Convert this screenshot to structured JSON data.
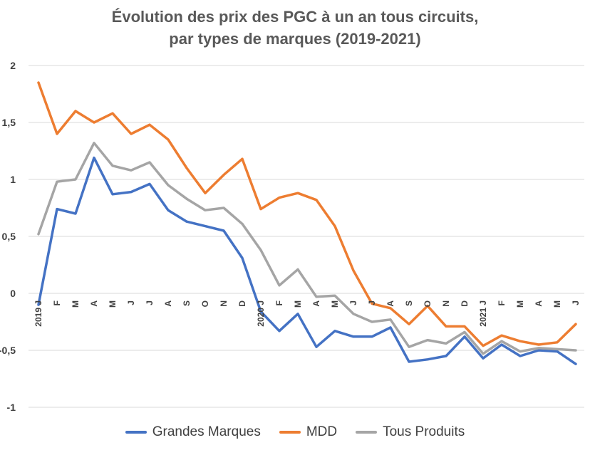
{
  "chart_data": {
    "type": "line",
    "title": [
      "Évolution des prix des PGC à un an tous circuits,",
      "par types de marques (2019-2021)"
    ],
    "xlabel": "",
    "ylabel": "",
    "ylim": [
      -1,
      2
    ],
    "yticks": [
      "2",
      "1,5",
      "1",
      "0,5",
      "0",
      "-0,5",
      "-1"
    ],
    "grid": true,
    "legend_position": "bottom",
    "categories": [
      "2019 J",
      "F",
      "M",
      "A",
      "M",
      "J",
      "J",
      "A",
      "S",
      "O",
      "N",
      "D",
      "2020 J",
      "F",
      "M",
      "A",
      "M",
      "J",
      "J",
      "A",
      "S",
      "O",
      "N",
      "D",
      "2021 J",
      "F",
      "M",
      "A",
      "M",
      "J"
    ],
    "series": [
      {
        "name": "Grandes Marques",
        "color": "#4472c4",
        "values": [
          -0.1,
          0.74,
          0.7,
          1.19,
          0.87,
          0.89,
          0.96,
          0.73,
          0.63,
          0.59,
          0.55,
          0.31,
          -0.16,
          -0.33,
          -0.18,
          -0.47,
          -0.33,
          -0.38,
          -0.38,
          -0.3,
          -0.6,
          -0.58,
          -0.55,
          -0.38,
          -0.57,
          -0.45,
          -0.55,
          -0.5,
          -0.51,
          -0.62
        ]
      },
      {
        "name": "MDD",
        "color": "#ed7d31",
        "values": [
          1.85,
          1.4,
          1.6,
          1.5,
          1.58,
          1.4,
          1.48,
          1.35,
          1.1,
          0.88,
          1.04,
          1.18,
          0.74,
          0.84,
          0.88,
          0.82,
          0.59,
          0.2,
          -0.09,
          -0.13,
          -0.27,
          -0.11,
          -0.29,
          -0.29,
          -0.46,
          -0.37,
          -0.42,
          -0.45,
          -0.43,
          -0.27
        ]
      },
      {
        "name": "Tous Produits",
        "color": "#a5a5a5",
        "values": [
          0.52,
          0.98,
          1.0,
          1.32,
          1.12,
          1.08,
          1.15,
          0.95,
          0.83,
          0.73,
          0.75,
          0.61,
          0.38,
          0.07,
          0.21,
          -0.03,
          -0.02,
          -0.18,
          -0.25,
          -0.23,
          -0.47,
          -0.41,
          -0.44,
          -0.34,
          -0.53,
          -0.42,
          -0.51,
          -0.48,
          -0.49,
          -0.5
        ]
      }
    ]
  }
}
